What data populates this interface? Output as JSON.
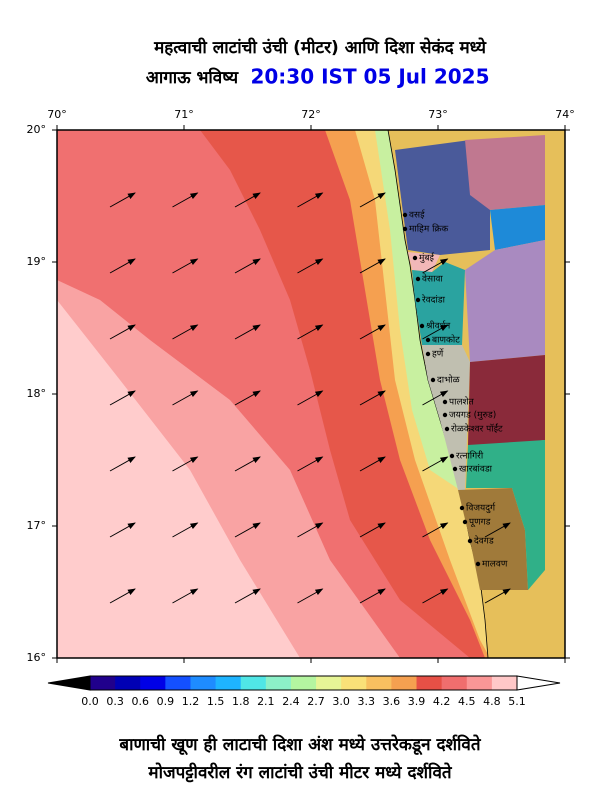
{
  "header": {
    "title": "महत्वाची लाटांची उंची (मीटर) आणि दिशा सेकंद मध्ये",
    "forecast_label": "आगाऊ भविष्य",
    "time": "20:30 IST 05 Jul 2025"
  },
  "map": {
    "lon_labels": [
      "70°",
      "71°",
      "72°",
      "73°",
      "74°"
    ],
    "lat_labels": [
      "20°",
      "19°",
      "18°",
      "17°",
      "16°"
    ],
    "places": [
      "वसई",
      "माहिम क्रिक",
      "मुंबई",
      "वेसावा",
      "रेवदांडा",
      "श्रीवर्धन",
      "बाणकोट",
      "हर्णे",
      "दाभोळ",
      "पालशेत",
      "जयगड (मुरुड)",
      "रोळकेश्वर पॉईंट",
      "रत्नागिरी",
      "खारबांवडा",
      "विजयदुर्ग",
      "पूणगड",
      "देवगड",
      "मालवण"
    ]
  },
  "colorbar": {
    "ticks": [
      "0.0",
      "0.3",
      "0.6",
      "0.9",
      "1.2",
      "1.5",
      "1.8",
      "2.1",
      "2.4",
      "2.7",
      "3.0",
      "3.3",
      "3.6",
      "3.9",
      "4.2",
      "4.5",
      "4.8",
      "5.1"
    ],
    "colors": [
      "#20008c",
      "#0000b4",
      "#0000e6",
      "#1450ff",
      "#1e8cff",
      "#1eb4ff",
      "#50e6e6",
      "#8cf0c8",
      "#b4f5a0",
      "#e6f596",
      "#fae178",
      "#f8c060",
      "#f5a050",
      "#e65046",
      "#f06e6e",
      "#fa9696",
      "#ffc8c8"
    ]
  },
  "footer": {
    "line1": "बाणाची खूण ही लाटाची दिशा अंश मध्ये उत्तरेकडून दर्शविते",
    "line2": "मोजपट्टीवरील रंग लाटांची उंची मीटर मध्ये दर्शविते"
  }
}
